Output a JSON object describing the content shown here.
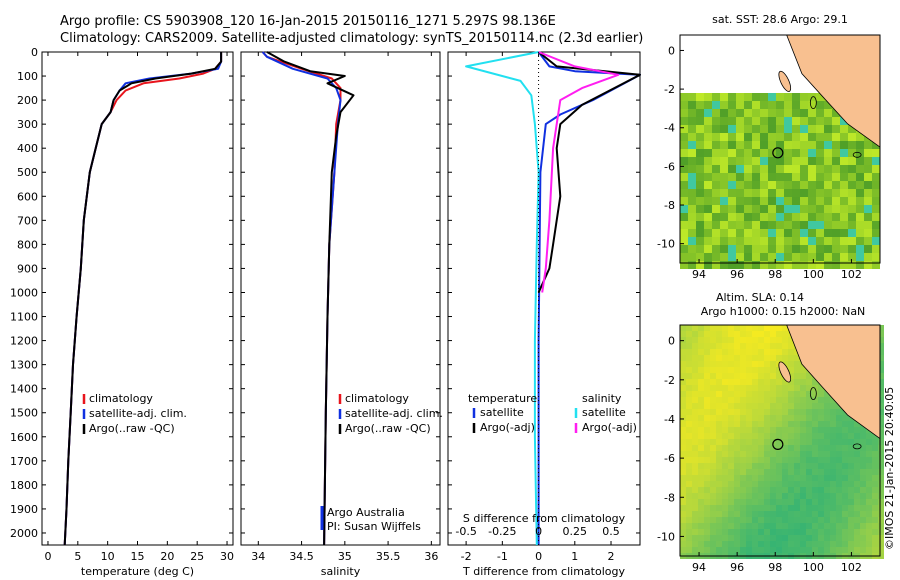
{
  "header": {
    "line1": "Argo profile: CS 5903908_120 16-Jan-2015 20150116_1271 5.297S 98.136E",
    "line2": "Climatology: CARS2009. Satellite-adjusted climatology: synTS_20150114.nc (2.3d earlier)"
  },
  "colors": {
    "climatology": "#e8141c",
    "satellite_adj": "#1030e0",
    "argo": "#000000",
    "salinity_sat": "#22e0f0",
    "salinity_argo": "#ff1ef0",
    "land": "#f8c090"
  },
  "chart_data": [
    {
      "type": "line",
      "xlabel": "temperature (deg C)",
      "ylim": [
        2050,
        0
      ],
      "xlim": [
        -1,
        31
      ],
      "xticks": [
        0,
        5,
        10,
        15,
        20,
        25,
        30
      ],
      "yticks": [
        0,
        100,
        200,
        300,
        400,
        500,
        600,
        700,
        800,
        900,
        1000,
        1100,
        1200,
        1300,
        1400,
        1500,
        1600,
        1700,
        1800,
        1900,
        2000
      ],
      "legend": [
        "climatology",
        "satellite-adj. clim.",
        "Argo(..raw -QC)"
      ],
      "series": [
        {
          "name": "climatology",
          "color": "#e8141c",
          "x": [
            29,
            29,
            28,
            26,
            22,
            16,
            13,
            11.5,
            10.5,
            9,
            8,
            7,
            6,
            5.5,
            4.8,
            4.2,
            3.8,
            3.4,
            3.1,
            2.8
          ],
          "y": [
            0,
            40,
            70,
            90,
            110,
            130,
            160,
            200,
            250,
            300,
            400,
            500,
            700,
            900,
            1100,
            1300,
            1500,
            1700,
            1900,
            2050
          ]
        },
        {
          "name": "satellite-adj. clim.",
          "color": "#1030e0",
          "x": [
            29,
            29,
            28.5,
            24,
            17,
            13,
            12,
            11,
            10.5,
            9,
            8,
            7,
            6,
            5.5,
            4.8,
            4.2,
            3.8,
            3.4,
            3.1,
            2.8
          ],
          "y": [
            0,
            40,
            70,
            90,
            110,
            130,
            160,
            200,
            250,
            300,
            400,
            500,
            700,
            900,
            1100,
            1300,
            1500,
            1700,
            1900,
            2050
          ]
        },
        {
          "name": "Argo(..raw -QC)",
          "color": "#000000",
          "x": [
            29,
            29,
            28,
            24,
            18,
            14,
            12,
            11,
            10.5,
            9,
            8,
            7,
            6,
            5.5,
            4.8,
            4.2,
            3.8,
            3.4,
            3.1,
            2.8
          ],
          "y": [
            0,
            40,
            70,
            90,
            110,
            130,
            160,
            200,
            250,
            300,
            400,
            500,
            700,
            900,
            1100,
            1300,
            1500,
            1700,
            1900,
            2050
          ]
        }
      ]
    },
    {
      "type": "line",
      "xlabel": "salinity",
      "ylim": [
        2050,
        0
      ],
      "xlim": [
        33.8,
        36.1
      ],
      "xticks": [
        34,
        34.5,
        35,
        35.5,
        36
      ],
      "legend": [
        "climatology",
        "satellite-adj. clim.",
        "Argo(..raw -QC)"
      ],
      "annotation": [
        "Argo Australia",
        "PI: Susan Wijffels"
      ],
      "series": [
        {
          "name": "climatology",
          "color": "#e8141c",
          "x": [
            34.05,
            34.1,
            34.5,
            34.85,
            34.95,
            34.95,
            34.9,
            34.88,
            34.82,
            34.8,
            34.78,
            34.76
          ],
          "y": [
            0,
            20,
            70,
            110,
            150,
            200,
            300,
            500,
            800,
            1100,
            1500,
            2050
          ]
        },
        {
          "name": "satellite-adj. clim.",
          "color": "#1030e0",
          "x": [
            34.05,
            34.1,
            34.4,
            34.8,
            34.9,
            34.95,
            34.92,
            34.88,
            34.82,
            34.8,
            34.78,
            34.76
          ],
          "y": [
            0,
            20,
            70,
            110,
            150,
            200,
            300,
            500,
            800,
            1100,
            1500,
            2050
          ]
        },
        {
          "name": "Argo(..raw -QC)",
          "color": "#000000",
          "x": [
            34.1,
            34.3,
            34.6,
            35.0,
            34.8,
            35.1,
            34.95,
            34.9,
            34.85,
            34.82,
            34.8,
            34.78,
            34.76
          ],
          "y": [
            0,
            40,
            80,
            100,
            130,
            180,
            250,
            350,
            500,
            800,
            1100,
            1500,
            2050
          ]
        }
      ]
    },
    {
      "type": "line",
      "xlabel": "T difference from climatology",
      "x2label": "S difference from climatology",
      "ylim": [
        2050,
        0
      ],
      "xlim": [
        -2.5,
        2.8
      ],
      "xticks": [
        -2,
        -1,
        0,
        1,
        2
      ],
      "x2ticks": [
        -0.5,
        -0.25,
        0,
        0.25,
        0.5
      ],
      "legend_left_title": "temperature",
      "legend_right_title": "salinity",
      "legend_left": [
        "satellite",
        "Argo(-adj)"
      ],
      "legend_right": [
        "satellite",
        "Argo(-adj)"
      ],
      "series": [
        {
          "name": "satellite",
          "color": "#1030e0",
          "x": [
            0,
            0.3,
            1.0,
            2.8,
            1.5,
            0.6,
            0.2,
            0.05,
            0.0,
            0.0
          ],
          "y": [
            0,
            60,
            80,
            95,
            200,
            260,
            300,
            500,
            1200,
            2050
          ]
        },
        {
          "name": "Argo(-adj)",
          "color": "#000000",
          "x": [
            0,
            0.5,
            2.8,
            1.2,
            0.6,
            0.5,
            0.6,
            0.4,
            0.3,
            0.0
          ],
          "y": [
            0,
            60,
            95,
            220,
            300,
            400,
            600,
            800,
            900,
            1000
          ]
        },
        {
          "name": "satellite",
          "color": "#22e0f0",
          "x": [
            0,
            -2.0,
            -0.5,
            -0.2,
            -0.1,
            0.0,
            -0.05,
            -0.1,
            -0.1,
            -0.05
          ],
          "y": [
            0,
            60,
            120,
            180,
            300,
            500,
            800,
            1200,
            1600,
            2050
          ]
        },
        {
          "name": "Argo(-adj)",
          "color": "#ff1ef0",
          "x": [
            0,
            1.0,
            2.2,
            1.2,
            0.6,
            0.4,
            0.3,
            0.2,
            0.1
          ],
          "y": [
            0,
            60,
            95,
            150,
            200,
            400,
            700,
            900,
            1000
          ]
        }
      ]
    },
    {
      "type": "heatmap",
      "title": "sat. SST: 28.6  Argo: 29.1",
      "xticks": [
        94,
        96,
        98,
        100,
        102
      ],
      "yticks": [
        0,
        -2,
        -4,
        -6,
        -8,
        -10
      ],
      "xlim": [
        93,
        103.5
      ],
      "ylim": [
        -11,
        0.8
      ],
      "marker": {
        "lon": 98.136,
        "lat": -5.297
      }
    },
    {
      "type": "heatmap",
      "title": "Altim. SLA: 0.14",
      "subtitle": "Argo h1000: 0.15 h2000: NaN",
      "xticks": [
        94,
        96,
        98,
        100,
        102
      ],
      "yticks": [
        0,
        -2,
        -4,
        -6,
        -8,
        -10
      ],
      "xlim": [
        93,
        103.5
      ],
      "ylim": [
        -11,
        0.8
      ],
      "marker": {
        "lon": 98.136,
        "lat": -5.297
      }
    }
  ],
  "footer": {
    "credit": "©IMOS 21-Jan-2015 20:40:05"
  }
}
